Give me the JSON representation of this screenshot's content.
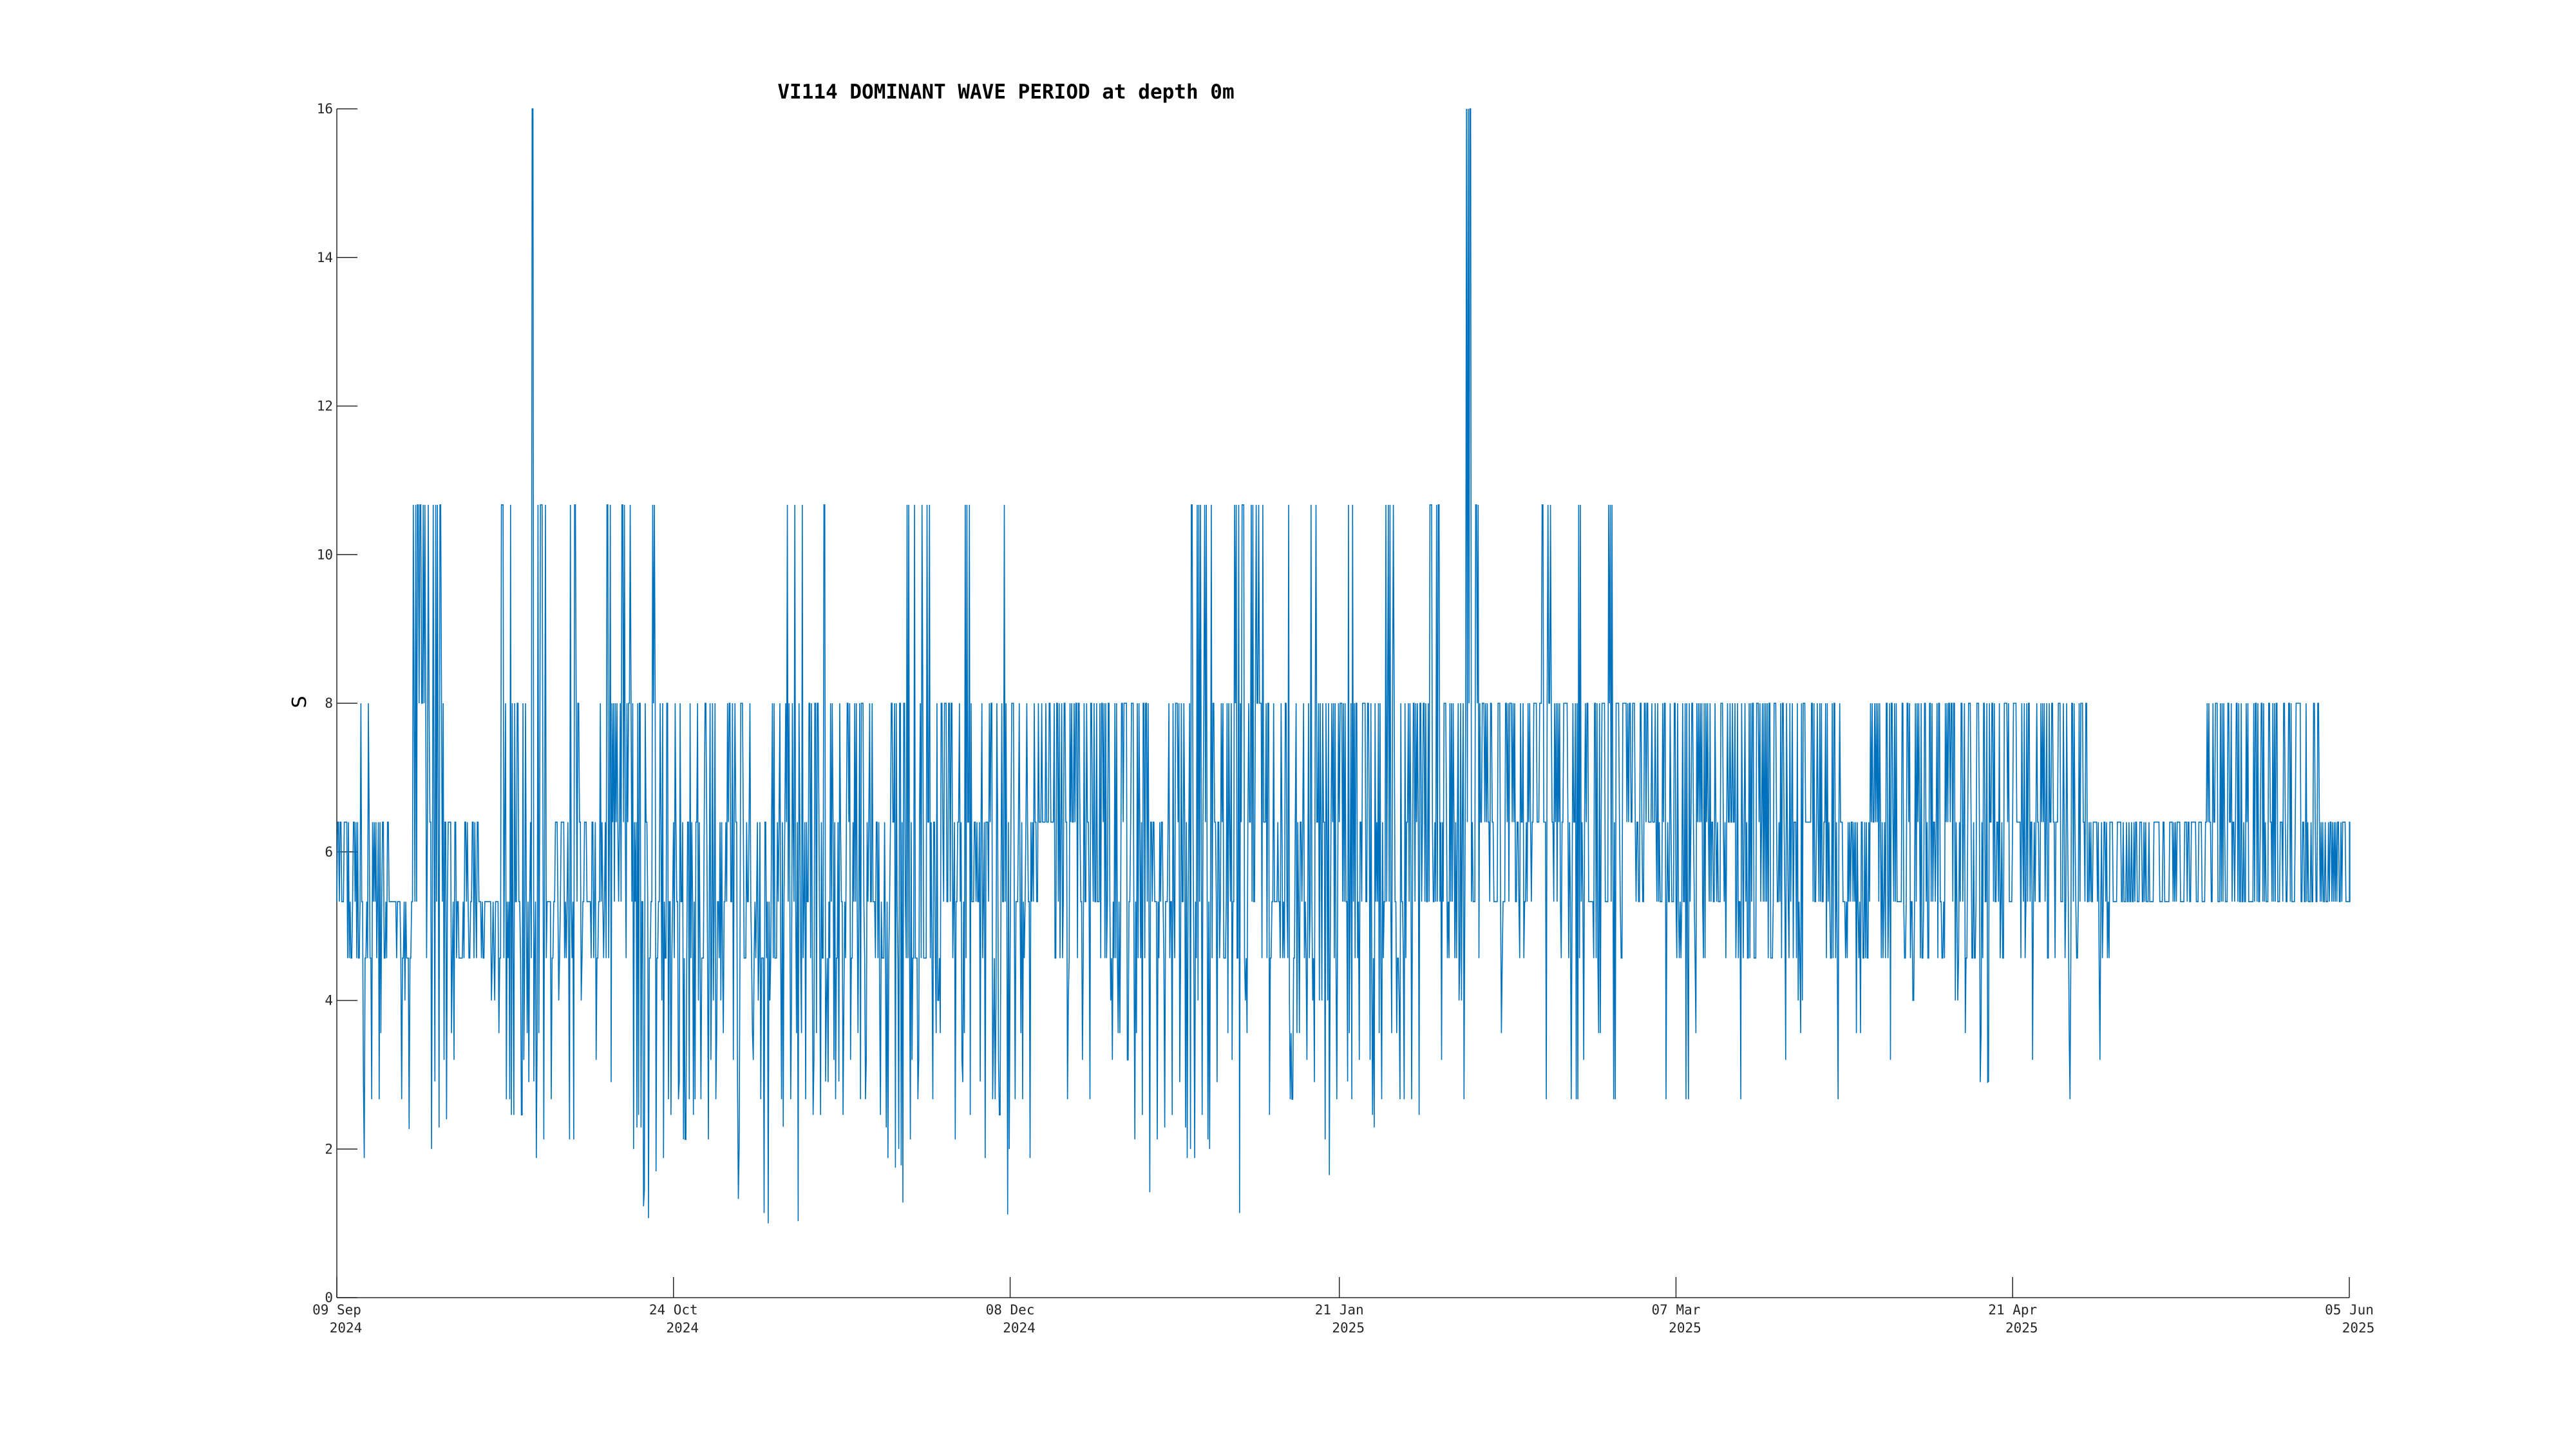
{
  "chart_data": {
    "type": "line",
    "title": "VI114 DOMINANT WAVE PERIOD at depth 0m",
    "xlabel": "",
    "ylabel": "S",
    "ylim": [
      0,
      16
    ],
    "yticks": [
      0,
      2,
      4,
      6,
      8,
      10,
      12,
      14,
      16
    ],
    "xlim": [
      "2024-09-09",
      "2025-06-05"
    ],
    "xticks": [
      {
        "date": "2024-09-09",
        "label_top": "09 Sep",
        "label_bottom": "2024"
      },
      {
        "date": "2024-10-24",
        "label_top": "24 Oct",
        "label_bottom": "2024"
      },
      {
        "date": "2024-12-08",
        "label_top": "08 Dec",
        "label_bottom": "2024"
      },
      {
        "date": "2025-01-21",
        "label_top": "21 Jan",
        "label_bottom": "2025"
      },
      {
        "date": "2025-03-07",
        "label_top": "07 Mar",
        "label_bottom": "2025"
      },
      {
        "date": "2025-04-21",
        "label_top": "21 Apr",
        "label_bottom": "2025"
      },
      {
        "date": "2025-06-05",
        "label_top": "05 Jun",
        "label_bottom": "2025"
      }
    ],
    "grid": false,
    "color": "#0072bd",
    "series": [
      {
        "x": [
          "2024-09-09",
          "2024-09-10",
          "2024-09-11",
          "2024-09-12",
          "2024-09-13",
          "2024-09-14",
          "2024-09-15",
          "2024-09-16",
          "2024-09-17",
          "2024-09-18",
          "2024-09-19",
          "2024-09-20",
          "2024-09-21",
          "2024-09-22",
          "2024-09-23",
          "2024-09-24",
          "2024-09-25",
          "2024-09-26",
          "2024-09-27",
          "2024-09-28",
          "2024-09-29",
          "2024-09-30",
          "2024-10-01",
          "2024-10-02",
          "2024-10-03",
          "2024-10-04",
          "2024-10-05",
          "2024-10-06",
          "2024-10-07",
          "2024-10-08",
          "2024-10-09",
          "2024-10-10",
          "2024-10-11",
          "2024-10-12",
          "2024-10-13",
          "2024-10-14",
          "2024-10-15",
          "2024-10-16",
          "2024-10-17",
          "2024-10-18",
          "2024-10-19",
          "2024-10-20",
          "2024-10-21",
          "2024-10-22",
          "2024-10-23",
          "2024-10-24",
          "2024-10-25",
          "2024-10-26",
          "2024-10-27",
          "2024-10-28",
          "2024-10-29",
          "2024-10-30",
          "2024-10-31",
          "2024-11-01",
          "2024-11-02",
          "2024-11-03",
          "2024-11-04",
          "2024-11-05",
          "2024-11-06",
          "2024-11-07",
          "2024-11-08",
          "2024-11-09",
          "2024-11-10",
          "2024-11-11",
          "2024-11-12",
          "2024-11-13",
          "2024-11-14",
          "2024-11-15",
          "2024-11-16",
          "2024-11-17",
          "2024-11-18",
          "2024-11-19",
          "2024-11-20",
          "2024-11-21",
          "2024-11-22",
          "2024-11-23",
          "2024-11-24",
          "2024-11-25",
          "2024-11-26",
          "2024-11-27",
          "2024-11-28",
          "2024-11-29",
          "2024-11-30",
          "2024-12-01",
          "2024-12-02",
          "2024-12-03",
          "2024-12-04",
          "2024-12-05",
          "2024-12-06",
          "2024-12-07",
          "2024-12-08",
          "2024-12-09",
          "2024-12-10",
          "2024-12-11",
          "2024-12-12",
          "2024-12-13",
          "2024-12-14",
          "2024-12-15",
          "2024-12-16",
          "2024-12-17",
          "2024-12-18",
          "2024-12-19",
          "2024-12-20",
          "2024-12-21",
          "2024-12-22",
          "2024-12-23",
          "2024-12-24",
          "2024-12-25",
          "2024-12-26",
          "2024-12-27",
          "2024-12-28",
          "2024-12-29",
          "2024-12-30",
          "2024-12-31",
          "2025-01-01",
          "2025-01-02",
          "2025-01-03",
          "2025-01-04",
          "2025-01-05",
          "2025-01-06",
          "2025-01-07",
          "2025-01-08",
          "2025-01-09",
          "2025-01-10",
          "2025-01-11",
          "2025-01-12",
          "2025-01-13",
          "2025-01-14",
          "2025-01-15",
          "2025-01-16",
          "2025-01-17",
          "2025-01-18",
          "2025-01-19",
          "2025-01-20",
          "2025-01-21",
          "2025-01-22",
          "2025-01-23",
          "2025-01-24",
          "2025-01-25",
          "2025-01-26",
          "2025-01-27",
          "2025-01-28",
          "2025-01-29",
          "2025-01-30",
          "2025-01-31",
          "2025-02-01",
          "2025-02-02",
          "2025-02-03",
          "2025-02-04",
          "2025-02-05",
          "2025-02-06",
          "2025-02-07",
          "2025-02-08",
          "2025-02-09",
          "2025-02-10",
          "2025-02-11",
          "2025-02-12",
          "2025-02-13",
          "2025-02-14",
          "2025-02-15",
          "2025-02-16",
          "2025-02-17",
          "2025-02-18",
          "2025-02-19",
          "2025-02-20",
          "2025-02-21",
          "2025-02-22",
          "2025-02-23",
          "2025-02-24",
          "2025-02-25",
          "2025-02-26",
          "2025-02-27",
          "2025-02-28",
          "2025-03-01",
          "2025-03-02",
          "2025-03-03",
          "2025-03-04",
          "2025-03-05",
          "2025-03-06",
          "2025-03-07",
          "2025-03-08",
          "2025-03-09",
          "2025-03-10",
          "2025-03-11",
          "2025-03-12",
          "2025-03-13",
          "2025-03-14",
          "2025-03-15",
          "2025-03-16",
          "2025-03-17",
          "2025-03-18",
          "2025-03-19",
          "2025-03-20",
          "2025-03-21",
          "2025-03-22",
          "2025-03-23",
          "2025-03-24",
          "2025-03-25",
          "2025-03-26",
          "2025-03-27",
          "2025-03-28",
          "2025-03-29",
          "2025-03-30",
          "2025-03-31",
          "2025-04-01",
          "2025-04-02",
          "2025-04-03",
          "2025-04-04",
          "2025-04-05",
          "2025-04-06",
          "2025-04-07",
          "2025-04-08",
          "2025-04-09",
          "2025-04-10",
          "2025-04-11",
          "2025-04-12",
          "2025-04-13",
          "2025-04-14",
          "2025-04-15",
          "2025-04-16",
          "2025-04-17",
          "2025-04-18",
          "2025-04-19",
          "2025-04-20",
          "2025-04-21",
          "2025-04-22",
          "2025-04-23",
          "2025-04-24",
          "2025-04-25",
          "2025-04-26",
          "2025-04-27",
          "2025-04-28",
          "2025-04-29",
          "2025-04-30",
          "2025-05-01",
          "2025-05-02",
          "2025-05-03",
          "2025-05-04",
          "2025-05-05",
          "2025-05-06",
          "2025-05-07",
          "2025-05-08",
          "2025-05-09",
          "2025-05-10",
          "2025-05-11",
          "2025-05-12",
          "2025-05-13",
          "2025-05-14",
          "2025-05-15",
          "2025-05-16",
          "2025-05-17",
          "2025-05-18",
          "2025-05-19",
          "2025-05-20",
          "2025-05-21",
          "2025-05-22",
          "2025-05-23",
          "2025-05-24",
          "2025-05-25",
          "2025-05-26",
          "2025-05-27",
          "2025-05-28",
          "2025-05-29",
          "2025-05-30",
          "2025-05-31",
          "2025-06-01",
          "2025-06-02",
          "2025-06-03",
          "2025-06-04",
          "2025-06-05"
        ],
        "max": [
          6.4,
          6.4,
          6.4,
          8.0,
          8.0,
          6.4,
          6.4,
          5.33,
          5.33,
          5.33,
          10.67,
          10.67,
          10.67,
          10.67,
          8.0,
          6.4,
          5.33,
          6.4,
          6.4,
          5.33,
          5.33,
          5.33,
          10.67,
          10.67,
          8.0,
          8.0,
          16.0,
          10.67,
          5.33,
          6.4,
          6.4,
          10.67,
          8.0,
          6.4,
          6.4,
          8.0,
          10.67,
          8.0,
          10.67,
          10.67,
          8.0,
          8.0,
          10.67,
          8.0,
          8.0,
          8.0,
          6.4,
          8.0,
          8.0,
          8.0,
          8.0,
          6.4,
          8.0,
          8.0,
          8.0,
          8.0,
          6.4,
          6.4,
          8.0,
          8.0,
          10.67,
          10.67,
          10.67,
          8.0,
          8.0,
          10.67,
          8.0,
          8.0,
          8.0,
          8.0,
          8.0,
          8.0,
          6.4,
          6.4,
          8.0,
          8.0,
          10.67,
          10.67,
          10.67,
          10.67,
          8.0,
          8.0,
          8.0,
          8.0,
          10.67,
          6.4,
          8.0,
          8.0,
          8.0,
          10.67,
          8.0,
          8.0,
          8.0,
          8.0,
          8.0,
          8.0,
          8.0,
          8.0,
          8.0,
          8.0,
          8.0,
          8.0,
          8.0,
          8.0,
          8.0,
          8.0,
          8.0,
          8.0,
          8.0,
          6.4,
          6.4,
          8.0,
          8.0,
          8.0,
          10.67,
          10.67,
          10.67,
          8.0,
          8.0,
          8.0,
          10.67,
          10.67,
          10.67,
          10.67,
          8.0,
          8.0,
          8.0,
          10.67,
          8.0,
          8.0,
          10.67,
          8.0,
          8.0,
          8.0,
          8.0,
          10.67,
          8.0,
          8.0,
          8.0,
          8.0,
          10.67,
          10.67,
          8.0,
          8.0,
          8.0,
          8.0,
          10.67,
          10.67,
          8.0,
          8.0,
          8.0,
          16.0,
          10.67,
          8.0,
          8.0,
          8.0,
          8.0,
          8.0,
          8.0,
          8.0,
          8.0,
          10.67,
          10.67,
          8.0,
          8.0,
          8.0,
          10.67,
          8.0,
          8.0,
          8.0,
          10.67,
          8.0,
          8.0,
          8.0,
          8.0,
          8.0,
          8.0,
          8.0,
          8.0,
          8.0,
          8.0,
          8.0,
          8.0,
          8.0,
          8.0,
          8.0,
          8.0,
          8.0,
          8.0,
          8.0,
          8.0,
          8.0,
          8.0,
          8.0,
          8.0,
          8.0,
          8.0,
          8.0,
          8.0,
          8.0,
          8.0,
          6.4,
          6.4,
          6.4,
          6.4,
          8.0,
          8.0,
          8.0,
          8.0,
          8.0,
          8.0,
          8.0,
          8.0,
          8.0,
          8.0,
          8.0,
          8.0,
          8.0,
          8.0,
          8.0,
          8.0,
          8.0,
          8.0,
          8.0,
          8.0,
          8.0,
          8.0,
          8.0,
          8.0,
          8.0,
          8.0,
          8.0,
          8.0,
          8.0,
          6.4,
          6.4,
          6.4,
          6.4,
          6.4,
          6.4,
          6.4,
          6.4,
          6.4,
          6.4,
          6.4,
          6.4,
          6.4,
          6.4,
          6.4,
          6.4,
          8.0,
          8.0,
          8.0,
          8.0,
          8.0,
          8.0,
          8.0,
          8.0,
          8.0,
          8.0,
          8.0,
          8.0,
          8.0,
          8.0,
          8.0,
          6.4,
          6.4,
          6.4,
          6.4,
          6.4,
          6.4,
          6.4,
          6.4,
          6.4,
          6.4,
          6.4,
          6.4,
          6.4,
          6.4,
          6.4
        ],
        "min": [
          5.33,
          4.57,
          4.57,
          1.88,
          2.67,
          2.67,
          4.57,
          5.33,
          2.67,
          2.27,
          5.33,
          8.0,
          2.0,
          2.29,
          2.4,
          3.2,
          4.57,
          4.57,
          4.57,
          4.57,
          4.0,
          3.56,
          2.67,
          2.46,
          2.46,
          2.9,
          1.88,
          2.13,
          2.67,
          4.0,
          4.57,
          2.13,
          4.0,
          5.33,
          3.2,
          4.57,
          2.9,
          5.33,
          4.57,
          2.0,
          2.29,
          1.07,
          1.7,
          1.88,
          2.46,
          2.67,
          2.13,
          2.46,
          2.67,
          2.13,
          2.67,
          3.56,
          5.33,
          1.33,
          4.57,
          3.2,
          2.67,
          1.0,
          4.57,
          2.3,
          2.67,
          1.03,
          2.67,
          2.46,
          2.46,
          2.9,
          2.67,
          2.46,
          3.2,
          3.56,
          2.67,
          5.33,
          2.46,
          1.88,
          1.75,
          1.28,
          2.13,
          2.67,
          4.57,
          2.67,
          3.56,
          5.33,
          2.13,
          2.9,
          2.46,
          5.33,
          1.88,
          2.67,
          2.46,
          1.12,
          2.67,
          2.67,
          1.88,
          5.33,
          6.4,
          6.4,
          4.57,
          2.67,
          6.4,
          3.2,
          2.67,
          5.33,
          4.57,
          3.2,
          3.56,
          3.2,
          2.13,
          2.46,
          1.42,
          2.13,
          2.29,
          2.46,
          2.9,
          1.88,
          1.88,
          2.46,
          2.0,
          2.9,
          4.57,
          3.2,
          1.14,
          3.56,
          5.33,
          4.57,
          2.46,
          5.33,
          4.57,
          2.67,
          3.56,
          3.2,
          2.9,
          4.0,
          1.65,
          2.67,
          5.33,
          2.67,
          3.2,
          5.33,
          2.29,
          2.67,
          5.33,
          3.56,
          2.67,
          2.67,
          2.46,
          5.33,
          5.33,
          3.2,
          4.57,
          4.57,
          2.67,
          5.33,
          4.57,
          6.4,
          5.33,
          3.56,
          5.33,
          5.33,
          4.57,
          5.33,
          6.4,
          2.67,
          5.33,
          4.57,
          4.57,
          2.67,
          3.2,
          5.33,
          3.56,
          5.33,
          2.67,
          4.57,
          6.4,
          5.33,
          5.33,
          6.4,
          5.33,
          2.67,
          5.33,
          4.57,
          2.67,
          3.56,
          4.57,
          5.33,
          5.33,
          4.57,
          6.4,
          2.67,
          4.57,
          4.57,
          5.33,
          4.57,
          5.33,
          3.2,
          4.57,
          3.56,
          6.4,
          5.33,
          5.33,
          4.57,
          2.67,
          4.57,
          5.33,
          3.56,
          4.57,
          6.4,
          4.57,
          3.2,
          5.33,
          4.57,
          4.0,
          4.57,
          4.57,
          5.33,
          4.57,
          6.4,
          4.0,
          3.56,
          4.57,
          2.9,
          2.9,
          5.33,
          4.57,
          5.33,
          6.4,
          4.57,
          3.2,
          5.33,
          4.57,
          4.57,
          5.33,
          2.67,
          4.57,
          5.33,
          5.33,
          3.2,
          4.57,
          5.33,
          5.33,
          5.33,
          5.33,
          5.33,
          5.33,
          5.33,
          5.33,
          5.33,
          5.33,
          5.33,
          5.33,
          5.33,
          5.33,
          5.33,
          5.33,
          5.33,
          5.33,
          5.33,
          5.33,
          5.33,
          5.33,
          5.33,
          5.33,
          5.33,
          5.33,
          5.33,
          5.33,
          5.33,
          5.33,
          5.33,
          5.33,
          5.33,
          5.33,
          5.33,
          5.33,
          5.33,
          5.33,
          5.33
        ]
      }
    ]
  }
}
